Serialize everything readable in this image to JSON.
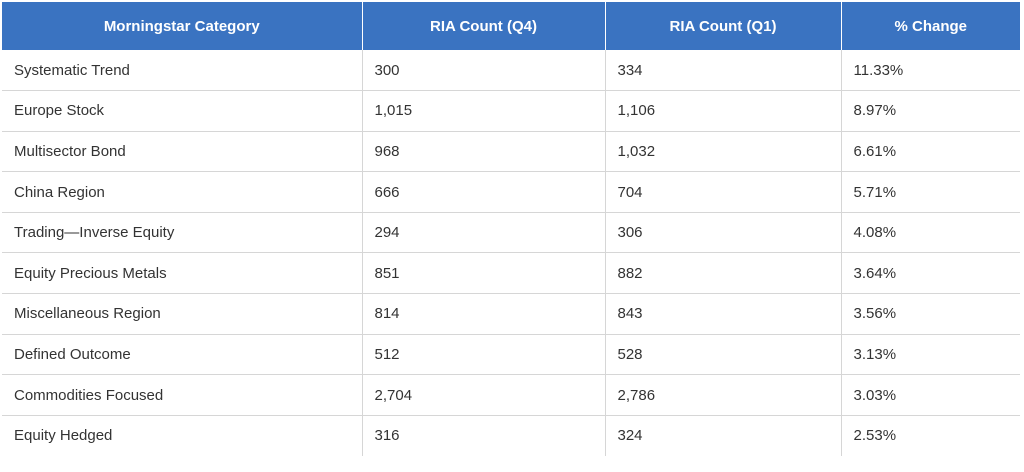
{
  "table": {
    "headers": [
      "Morningstar Category",
      "RIA Count (Q4)",
      "RIA Count (Q1)",
      "% Change"
    ],
    "rows": [
      [
        "Systematic Trend",
        "300",
        "334",
        "11.33%"
      ],
      [
        "Europe Stock",
        "1,015",
        "1,106",
        "8.97%"
      ],
      [
        "Multisector Bond",
        "968",
        "1,032",
        "6.61%"
      ],
      [
        "China Region",
        "666",
        "704",
        "5.71%"
      ],
      [
        "Trading—Inverse Equity",
        "294",
        "306",
        "4.08%"
      ],
      [
        "Equity Precious Metals",
        "851",
        "882",
        "3.64%"
      ],
      [
        "Miscellaneous Region",
        "814",
        "843",
        "3.56%"
      ],
      [
        "Defined Outcome",
        "512",
        "528",
        "3.13%"
      ],
      [
        "Commodities Focused",
        "2,704",
        "2,786",
        "3.03%"
      ],
      [
        "Equity Hedged",
        "316",
        "324",
        "2.53%"
      ]
    ]
  },
  "colors": {
    "header_bg": "#3a73c1",
    "header_text": "#ffffff",
    "cell_text": "#333333",
    "grid": "#d6d6d6"
  }
}
